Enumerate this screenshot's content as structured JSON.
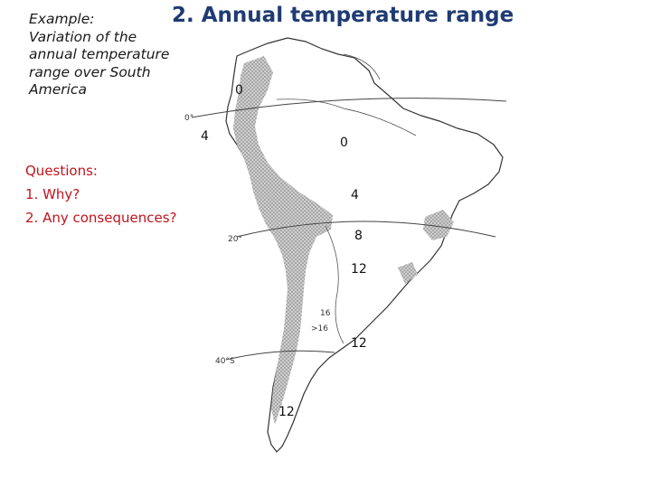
{
  "title": "2. Annual temperature range",
  "example": {
    "lines": [
      "Example:",
      "Variation of the",
      "annual temperature",
      "range over South",
      "America"
    ]
  },
  "questions": {
    "heading": "Questions:",
    "items": [
      "1. Why?",
      "2. Any consequences?"
    ]
  },
  "map": {
    "isoline_labels": [
      "0",
      "4",
      "0",
      "4",
      "8",
      "12",
      "12",
      "12"
    ],
    "inner_labels": [
      "16",
      ">16"
    ],
    "latitude_labels": [
      "0°",
      "20°",
      "40°S"
    ],
    "colors": {
      "land_shading": "#b9b9b9",
      "coast": "#333333",
      "title": "#1f3b73",
      "questions": "#c0141c"
    }
  }
}
